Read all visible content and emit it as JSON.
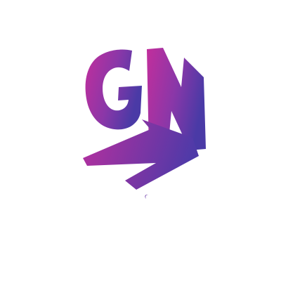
{
  "logo": {
    "letters": "GN",
    "icon": "gn-monogram-logo-icon",
    "gradient": [
      "#c02fa0",
      "#7a3aa8",
      "#4b3aa8"
    ],
    "background": "#ffffff"
  }
}
